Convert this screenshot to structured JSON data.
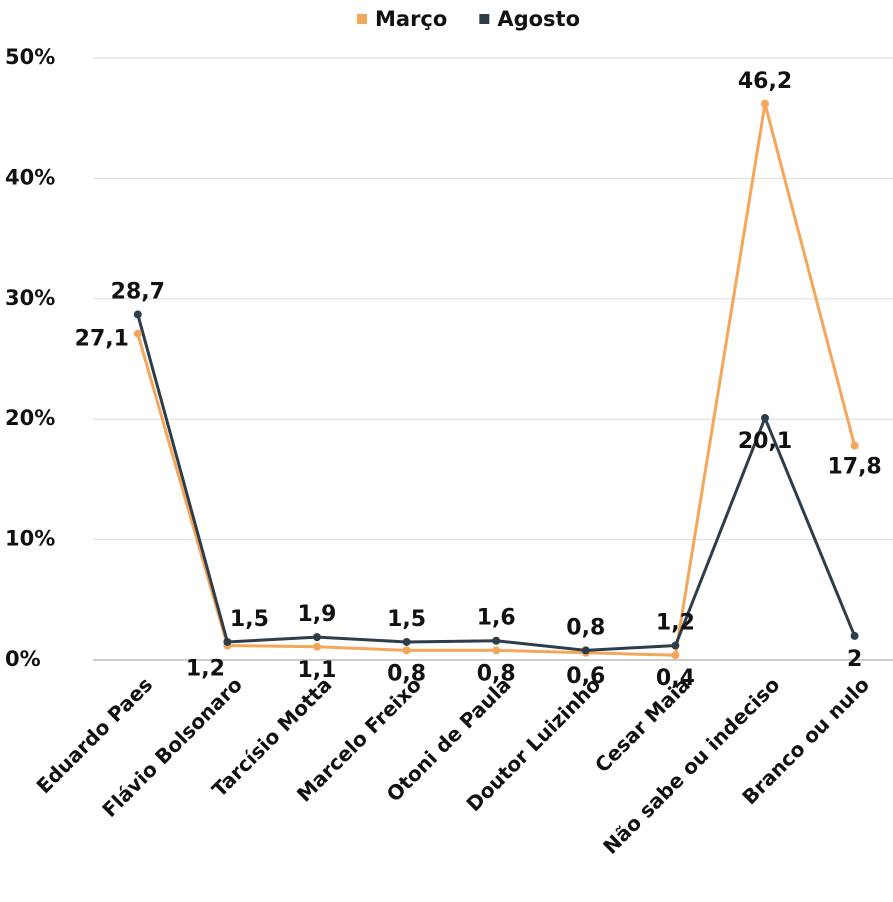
{
  "chart_data": {
    "type": "line",
    "categories": [
      "Eduardo Paes",
      "Flávio Bolsonaro",
      "Tarcísio Motta",
      "Marcelo Freixo",
      "Otoni de Paula",
      "Doutor Luizinho",
      "Cesar Maia",
      "Não sabe ou indeciso",
      "Branco ou nulo"
    ],
    "series": [
      {
        "name": "Março",
        "color": "#f4a65a",
        "values": [
          27.1,
          1.2,
          1.1,
          0.8,
          0.8,
          0.6,
          0.4,
          46.2,
          17.8
        ],
        "value_labels": [
          "27,1",
          "1,2",
          "1,1",
          "0,8",
          "0,8",
          "0,6",
          "0,4",
          "46,2",
          "17,8"
        ]
      },
      {
        "name": "Agosto",
        "color": "#2e3d4a",
        "values": [
          28.7,
          1.5,
          1.9,
          1.5,
          1.6,
          0.8,
          1.2,
          20.1,
          2
        ],
        "value_labels": [
          "28,7",
          "1,5",
          "1,9",
          "1,5",
          "1,6",
          "0,8",
          "1,2",
          "20,1",
          "2"
        ]
      }
    ],
    "ylim": [
      0,
      50
    ],
    "yticks": [
      {
        "value": 0,
        "label": "0%"
      },
      {
        "value": 10,
        "label": "10%"
      },
      {
        "value": 20,
        "label": "20%"
      },
      {
        "value": 30,
        "label": "30%"
      },
      {
        "value": 40,
        "label": "40%"
      },
      {
        "value": 50,
        "label": "50%"
      }
    ],
    "grid": true,
    "legend": "top"
  }
}
